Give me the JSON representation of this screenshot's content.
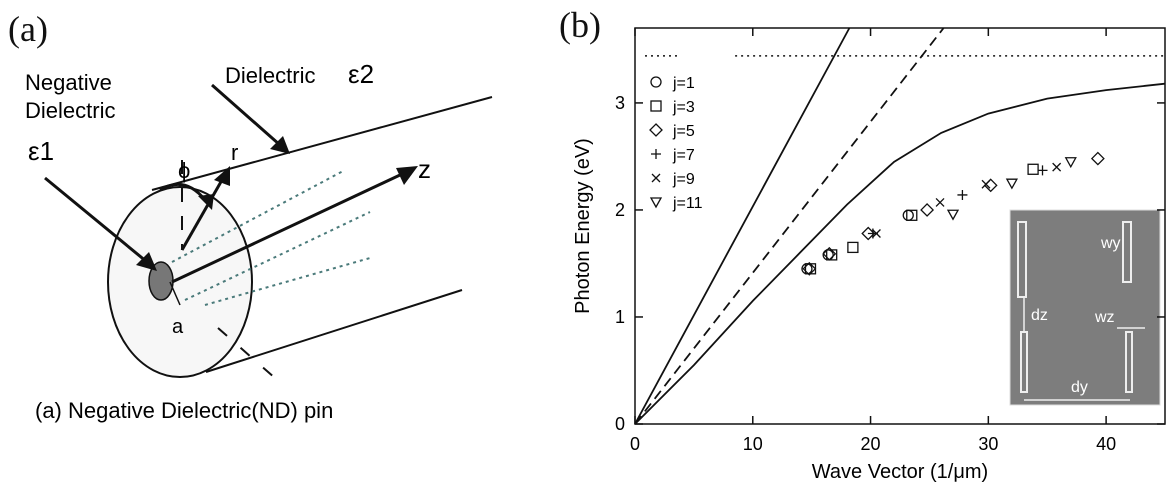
{
  "panel_a": {
    "label": "(a)",
    "labels": {
      "negative_dielectric_line1": "Negative",
      "negative_dielectric_line2": "Dielectric",
      "eps1": "ε1",
      "dielectric": "Dielectric",
      "eps2": "ε2",
      "phi": "ϕ",
      "r": "r",
      "z": "z",
      "a": "a"
    },
    "caption": "(a) Negative Dielectric(ND) pin"
  },
  "panel_b": {
    "label": "(b)",
    "inset": {
      "wy": "wy",
      "dz": "dz",
      "wz": "wz",
      "dy": "dy"
    }
  },
  "chart_data": {
    "type": "scatter",
    "xlabel": "Wave Vector (1/μm)",
    "ylabel": "Photon Energy (eV)",
    "xlim": [
      0,
      45
    ],
    "ylim": [
      0,
      3.7
    ],
    "xticks": [
      0,
      10,
      20,
      30,
      40
    ],
    "yticks": [
      0,
      1,
      2,
      3
    ],
    "legend_position": "top-left",
    "series": [
      {
        "name": "j=1",
        "marker": "circle",
        "points": [
          [
            14.6,
            1.45
          ],
          [
            16.4,
            1.58
          ],
          [
            23.2,
            1.95
          ]
        ]
      },
      {
        "name": "j=3",
        "marker": "square",
        "points": [
          [
            14.9,
            1.45
          ],
          [
            16.7,
            1.58
          ],
          [
            18.5,
            1.65
          ],
          [
            23.5,
            1.95
          ],
          [
            33.8,
            2.38
          ]
        ]
      },
      {
        "name": "j=5",
        "marker": "diamond",
        "points": [
          [
            14.8,
            1.45
          ],
          [
            16.5,
            1.59
          ],
          [
            19.8,
            1.78
          ],
          [
            24.8,
            2.0
          ],
          [
            30.2,
            2.23
          ],
          [
            39.3,
            2.48
          ]
        ]
      },
      {
        "name": "j=7",
        "marker": "plus",
        "points": [
          [
            20.2,
            1.78
          ],
          [
            27.8,
            2.14
          ],
          [
            34.6,
            2.37
          ]
        ]
      },
      {
        "name": "j=9",
        "marker": "x",
        "points": [
          [
            20.5,
            1.78
          ],
          [
            25.9,
            2.07
          ],
          [
            29.8,
            2.24
          ],
          [
            35.8,
            2.4
          ]
        ]
      },
      {
        "name": "j=11",
        "marker": "triangle",
        "points": [
          [
            27.0,
            1.96
          ],
          [
            32.0,
            2.25
          ],
          [
            37.0,
            2.45
          ]
        ]
      }
    ],
    "reference_lines": [
      {
        "style": "solid",
        "description": "light line",
        "points": [
          [
            0,
            0
          ],
          [
            18.2,
            3.7
          ]
        ]
      },
      {
        "style": "dashed",
        "description": "light line",
        "points": [
          [
            0,
            0
          ],
          [
            26.2,
            3.7
          ]
        ]
      },
      {
        "style": "solid",
        "description": "dispersion curve",
        "points": [
          [
            0,
            0
          ],
          [
            5,
            0.55
          ],
          [
            10,
            1.15
          ],
          [
            14,
            1.6
          ],
          [
            18,
            2.05
          ],
          [
            22,
            2.45
          ],
          [
            26,
            2.72
          ],
          [
            30,
            2.9
          ],
          [
            35,
            3.04
          ],
          [
            40,
            3.12
          ],
          [
            45,
            3.18
          ]
        ]
      },
      {
        "style": "dotted",
        "description": "asymptote",
        "y": 3.44
      }
    ]
  }
}
